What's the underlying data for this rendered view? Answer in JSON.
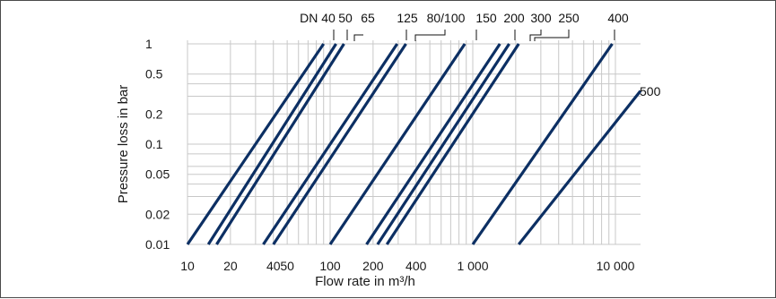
{
  "chart_data": {
    "type": "line",
    "title": "",
    "xlabel": "Flow rate in m³/h",
    "ylabel": "Pressure loss in bar",
    "x_scale": "log",
    "y_scale": "log",
    "xlim": [
      10,
      15000
    ],
    "ylim": [
      0.01,
      1
    ],
    "grid": true,
    "x_ticks": [
      10,
      20,
      40,
      50,
      100,
      200,
      400,
      1000,
      10000
    ],
    "x_tick_labels": [
      "10",
      "20",
      "40",
      "50",
      "100",
      "200",
      "400",
      "1 000",
      "10 000"
    ],
    "y_ticks": [
      1,
      0.5,
      0.2,
      0.1,
      0.05,
      0.02,
      0.01
    ],
    "y_tick_labels": [
      "1",
      "0.5",
      "0.2",
      "0.1",
      "0.05",
      "0.02",
      "0.01"
    ],
    "series_prefix": "DN",
    "series": [
      {
        "name": "40",
        "x": [
          10,
          90
        ],
        "y": [
          0.01,
          1
        ]
      },
      {
        "name": "50",
        "x": [
          14,
          110
        ],
        "y": [
          0.01,
          1
        ]
      },
      {
        "name": "65",
        "x": [
          16,
          125
        ],
        "y": [
          0.01,
          1
        ]
      },
      {
        "name": "125",
        "x": [
          34,
          295
        ],
        "y": [
          0.01,
          1
        ]
      },
      {
        "name": "80/100",
        "x": [
          40,
          340
        ],
        "y": [
          0.01,
          1
        ]
      },
      {
        "name": "150",
        "x": [
          100,
          880
        ],
        "y": [
          0.01,
          1
        ]
      },
      {
        "name": "200",
        "x": [
          180,
          1550
        ],
        "y": [
          0.01,
          1
        ]
      },
      {
        "name": "300",
        "x": [
          215,
          1800
        ],
        "y": [
          0.01,
          1
        ]
      },
      {
        "name": "250",
        "x": [
          250,
          2100
        ],
        "y": [
          0.01,
          1
        ]
      },
      {
        "name": "400",
        "x": [
          1000,
          9500
        ],
        "y": [
          0.01,
          1
        ]
      },
      {
        "name": "500",
        "x": [
          2100,
          15000
        ],
        "y": [
          0.01,
          0.34
        ]
      }
    ],
    "series_labels": {
      "top": [
        {
          "text": "DN 40"
        },
        {
          "text": "50"
        },
        {
          "text": "65"
        },
        {
          "text": "125"
        },
        {
          "text": "80/100"
        },
        {
          "text": "150"
        },
        {
          "text": "200"
        },
        {
          "text": "300"
        },
        {
          "text": "250"
        },
        {
          "text": "400"
        }
      ],
      "right": [
        {
          "text": "500"
        }
      ]
    },
    "colors": {
      "curve": "#0c2f63",
      "grid": "#c8c8c8",
      "frame": "#4a4a4a"
    }
  }
}
